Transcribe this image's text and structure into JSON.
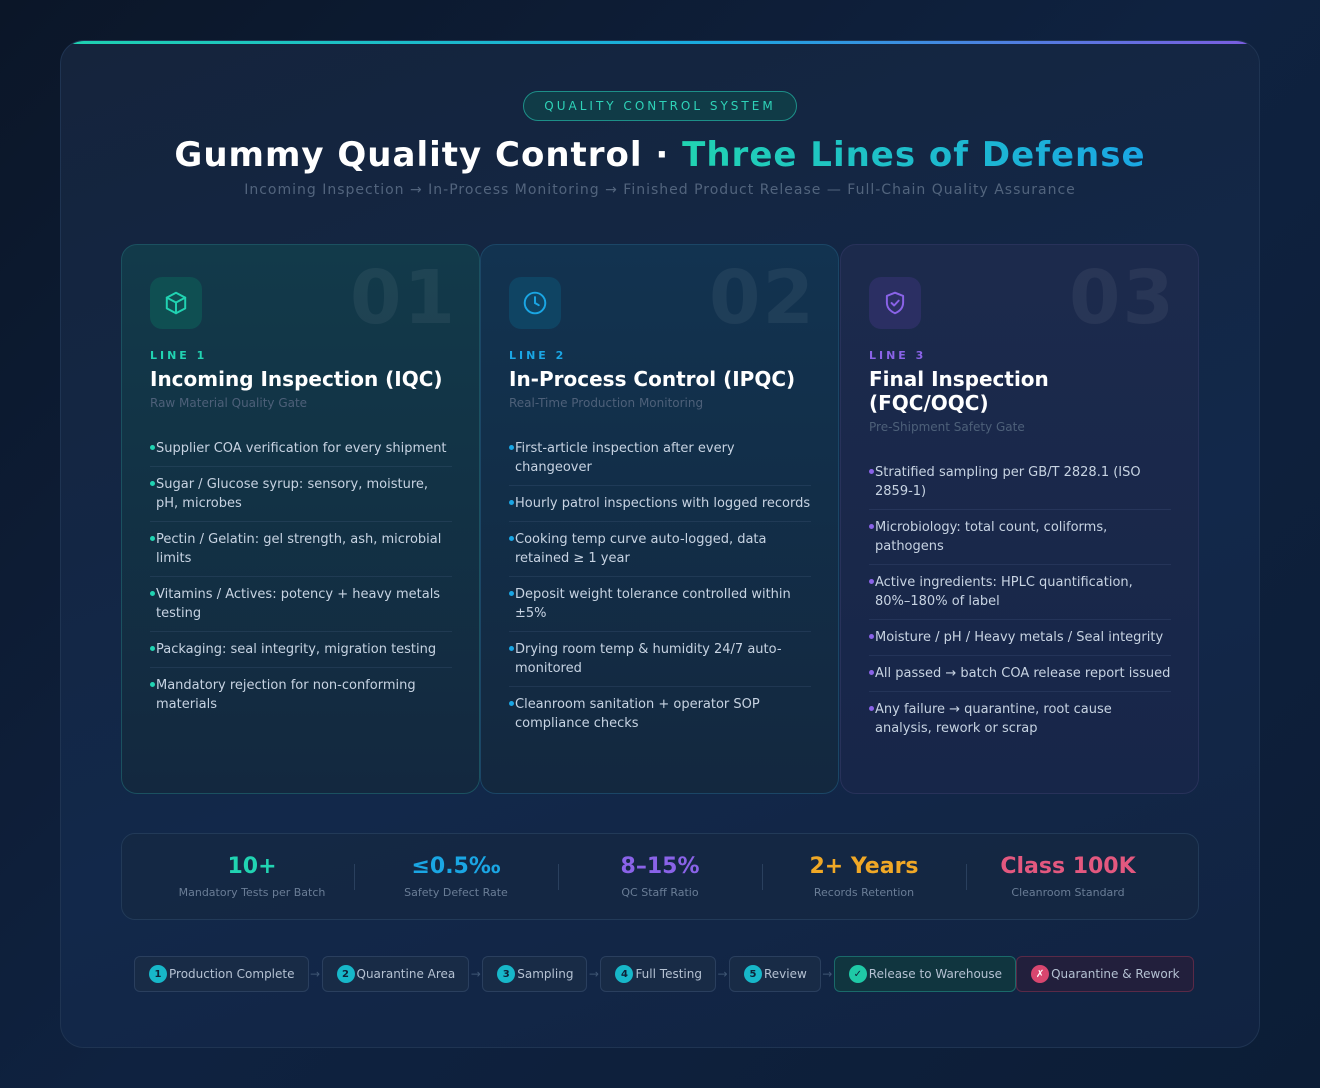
{
  "header": {
    "badge": "QUALITY CONTROL SYSTEM",
    "title_main": "Gummy Quality Control · ",
    "title_accent": "Three Lines of Defense",
    "subtitle": "Incoming Inspection → In-Process Monitoring → Finished Product Release — Full-Chain Quality Assurance"
  },
  "cards": [
    {
      "number": "01",
      "line": "LINE 1",
      "title": "Incoming Inspection (IQC)",
      "subtitle": "Raw Material Quality Gate",
      "icon": "cube-icon",
      "accent": "#21d3b2",
      "items": [
        "Supplier COA verification for every shipment",
        "Sugar / Glucose syrup: sensory, moisture, pH, microbes",
        "Pectin / Gelatin: gel strength, ash, microbial limits",
        "Vitamins / Actives: potency + heavy metals testing",
        "Packaging: seal integrity, migration testing",
        "Mandatory rejection for non-conforming materials"
      ]
    },
    {
      "number": "02",
      "line": "LINE 2",
      "title": "In-Process Control (IPQC)",
      "subtitle": "Real-Time Production Monitoring",
      "icon": "clock-icon",
      "accent": "#1aa6e4",
      "items": [
        "First-article inspection after every changeover",
        "Hourly patrol inspections with logged records",
        "Cooking temp curve auto-logged, data retained ≥ 1 year",
        "Deposit weight tolerance controlled within ±5%",
        "Drying room temp & humidity 24/7 auto-monitored",
        "Cleanroom sanitation + operator SOP compliance checks"
      ]
    },
    {
      "number": "03",
      "line": "LINE 3",
      "title": "Final Inspection (FQC/OQC)",
      "subtitle": "Pre-Shipment Safety Gate",
      "icon": "shield-check-icon",
      "accent": "#8a63e8",
      "items": [
        "Stratified sampling per GB/T 2828.1 (ISO 2859-1)",
        "Microbiology: total count, coliforms, pathogens",
        "Active ingredients: HPLC quantification, 80%–180% of label",
        "Moisture / pH / Heavy metals / Seal integrity",
        "All passed → batch COA release report issued",
        "Any failure → quarantine, root cause analysis, rework or scrap"
      ]
    }
  ],
  "stats": [
    {
      "value": "10+",
      "label": "Mandatory Tests per Batch",
      "color": "#21d3b2"
    },
    {
      "value": "≤0.5‰",
      "label": "Safety Defect Rate",
      "color": "#1aa6e4"
    },
    {
      "value": "8–15%",
      "label": "QC Staff Ratio",
      "color": "#8a63e8"
    },
    {
      "value": "2+ Years",
      "label": "Records Retention",
      "color": "#f0a826"
    },
    {
      "value": "Class 100K",
      "label": "Cleanroom Standard",
      "color": "#e3587f"
    }
  ],
  "flow": [
    {
      "badge": "1",
      "label": "Production Complete",
      "kind": "step"
    },
    {
      "badge": "2",
      "label": "Quarantine Area",
      "kind": "step"
    },
    {
      "badge": "3",
      "label": "Sampling",
      "kind": "step"
    },
    {
      "badge": "4",
      "label": "Full Testing",
      "kind": "step"
    },
    {
      "badge": "5",
      "label": "Review",
      "kind": "step"
    },
    {
      "badge": "✓",
      "label": "Release to Warehouse",
      "kind": "ok"
    },
    {
      "badge": "✗",
      "label": "Quarantine & Rework",
      "kind": "fail"
    }
  ],
  "flow_arrow": "→"
}
